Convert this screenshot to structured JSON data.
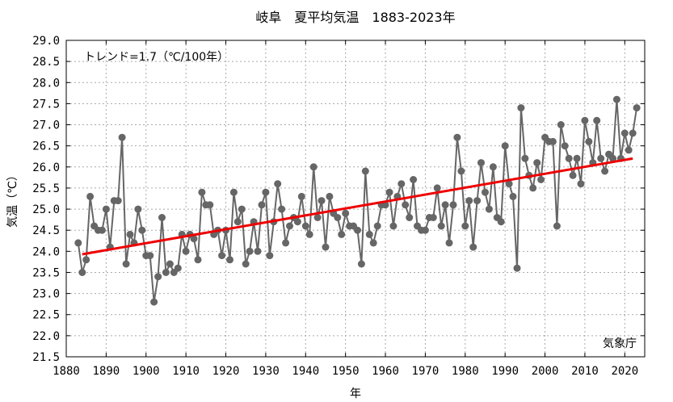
{
  "chart_data": {
    "type": "line",
    "title": "岐阜　夏平均気温　1883-2023年",
    "xlabel": "年",
    "ylabel": "気温（℃）",
    "xlim": [
      1880,
      2025
    ],
    "ylim": [
      21.5,
      29.0
    ],
    "x_ticks": [
      1880,
      1890,
      1900,
      1910,
      1920,
      1930,
      1940,
      1950,
      1960,
      1970,
      1980,
      1990,
      2000,
      2010,
      2020
    ],
    "y_ticks": [
      "21.5",
      "22.0",
      "22.5",
      "23.0",
      "23.5",
      "24.0",
      "24.5",
      "25.0",
      "25.5",
      "26.0",
      "26.5",
      "27.0",
      "27.5",
      "28.0",
      "28.5",
      "29.0"
    ],
    "grid": true,
    "annotation_trend": "トレンド=1.7（℃/100年）",
    "annotation_source": "気象庁",
    "colors": {
      "series": "#666666",
      "trend": "#ee0000",
      "grid": "#aaaaaa"
    },
    "series": [
      {
        "x": [
          1883,
          1884,
          1885,
          1886,
          1887,
          1888,
          1889,
          1890,
          1891,
          1892,
          1893,
          1894,
          1895,
          1896,
          1897,
          1898,
          1899,
          1900,
          1901,
          1902,
          1903,
          1904,
          1905,
          1906,
          1907,
          1908,
          1909,
          1910,
          1911,
          1912,
          1913,
          1914,
          1915,
          1916,
          1917,
          1918,
          1919,
          1920,
          1921,
          1922,
          1923,
          1924,
          1925,
          1926,
          1927,
          1928,
          1929,
          1930,
          1931,
          1932,
          1933,
          1934,
          1935,
          1936,
          1937,
          1938,
          1939,
          1940,
          1941,
          1942,
          1943,
          1944,
          1945,
          1946,
          1947,
          1948,
          1949,
          1950,
          1951,
          1952,
          1953,
          1954,
          1955,
          1956,
          1957,
          1958,
          1959,
          1960,
          1961,
          1962,
          1963,
          1964,
          1965,
          1966,
          1967,
          1968,
          1969,
          1970,
          1971,
          1972,
          1973,
          1974,
          1975,
          1976,
          1977,
          1978,
          1979,
          1980,
          1981,
          1982,
          1983,
          1984,
          1985,
          1986,
          1987,
          1988,
          1989,
          1990,
          1991,
          1992,
          1993,
          1994,
          1995,
          1996,
          1997,
          1998,
          1999,
          2000,
          2001,
          2002,
          2003,
          2004,
          2005,
          2006,
          2007,
          2008,
          2009,
          2010,
          2011,
          2012,
          2013,
          2014,
          2015,
          2016,
          2017,
          2018,
          2019,
          2020,
          2021,
          2022,
          2023
        ],
        "values": [
          24.2,
          23.5,
          23.8,
          25.3,
          24.6,
          24.5,
          24.5,
          25.0,
          24.1,
          25.2,
          25.2,
          26.7,
          23.7,
          24.4,
          24.2,
          25.0,
          24.5,
          23.9,
          23.9,
          22.8,
          23.4,
          24.8,
          23.5,
          23.7,
          23.5,
          23.6,
          24.4,
          24.0,
          24.4,
          24.3,
          23.8,
          25.4,
          25.1,
          25.1,
          24.4,
          24.5,
          23.9,
          24.5,
          23.8,
          25.4,
          24.7,
          25.0,
          23.7,
          24.0,
          24.7,
          24.0,
          25.1,
          25.4,
          23.9,
          24.7,
          25.6,
          25.0,
          24.2,
          24.6,
          24.8,
          24.7,
          25.3,
          24.6,
          24.4,
          26.0,
          24.8,
          25.2,
          24.1,
          25.3,
          24.9,
          24.8,
          24.4,
          24.9,
          24.6,
          24.6,
          24.5,
          23.7,
          25.9,
          24.4,
          24.2,
          24.6,
          25.1,
          25.1,
          25.4,
          24.6,
          25.3,
          25.6,
          25.1,
          24.8,
          25.7,
          24.6,
          24.5,
          24.5,
          24.8,
          24.8,
          25.5,
          24.6,
          25.1,
          24.2,
          25.1,
          26.7,
          25.9,
          24.6,
          25.2,
          24.1,
          25.2,
          26.1,
          25.4,
          25.0,
          26.0,
          24.8,
          24.7,
          26.5,
          25.6,
          25.3,
          23.6,
          27.4,
          26.2,
          25.8,
          25.5,
          26.1,
          25.7,
          26.7,
          26.6,
          26.6,
          24.6,
          27.0,
          26.5,
          26.2,
          25.8,
          26.2,
          25.6,
          27.1,
          26.6,
          26.1,
          27.1,
          26.2,
          25.9,
          26.3,
          26.2,
          27.6,
          26.2,
          26.8,
          26.4,
          26.8,
          27.4
        ]
      }
    ],
    "trend": {
      "x": [
        1884,
        2022
      ],
      "values": [
        23.93,
        26.2
      ]
    }
  }
}
